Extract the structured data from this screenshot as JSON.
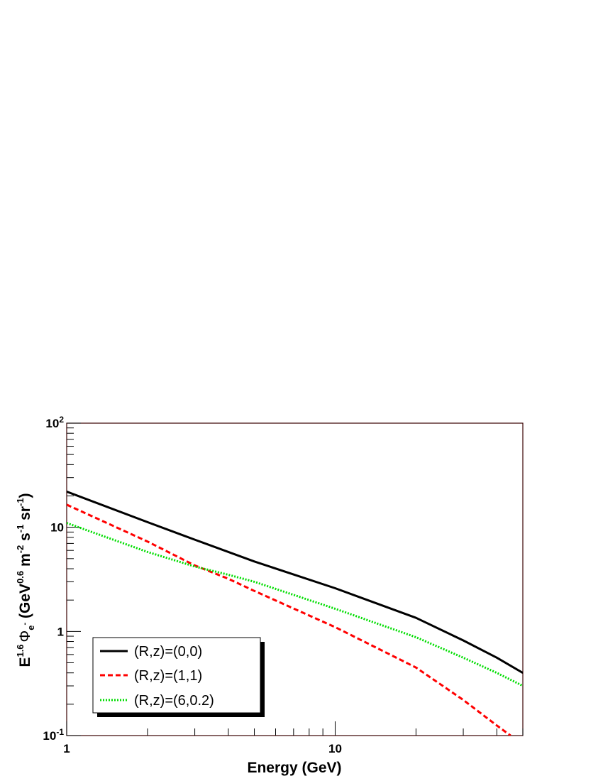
{
  "chart_data": {
    "type": "line",
    "x_scale": "log",
    "y_scale": "log",
    "xlim": [
      1,
      50
    ],
    "ylim": [
      0.1,
      100
    ],
    "xlabel": "Energy (GeV)",
    "ylabel": {
      "base": "E",
      "sup1": "1.6",
      "phi": "Φ",
      "sub": "e",
      "sub_sup": "-",
      "open": " (GeV",
      "sup2": "0.6",
      "m": " m",
      "sup3": "-2",
      "s": " s",
      "sup4": "-1",
      "sr": " sr",
      "sup5": "-1",
      "close": ")"
    },
    "x_ticks": [
      {
        "value": 1,
        "base": "1",
        "exp": ""
      },
      {
        "value": 10,
        "base": "10",
        "exp": ""
      }
    ],
    "y_ticks": [
      {
        "value": 0.1,
        "base": "10",
        "exp": "-1"
      },
      {
        "value": 1,
        "base": "1",
        "exp": ""
      },
      {
        "value": 10,
        "base": "10",
        "exp": ""
      },
      {
        "value": 100,
        "base": "10",
        "exp": "2"
      }
    ],
    "grid": false,
    "legend_position": "bottom-left",
    "series": [
      {
        "name": "(R,z)=(0,0)",
        "color": "#000000",
        "style": "solid",
        "x": [
          1,
          2,
          3,
          5,
          10,
          20,
          30,
          40,
          50
        ],
        "y": [
          22,
          11.2,
          7.6,
          4.7,
          2.6,
          1.35,
          0.82,
          0.56,
          0.4
        ]
      },
      {
        "name": "(R,z)=(1,1)",
        "color": "#ff0000",
        "style": "dashed",
        "x": [
          1,
          2,
          3,
          4,
          5,
          10,
          20,
          30,
          40,
          45
        ],
        "y": [
          16.5,
          7.3,
          4.3,
          3.2,
          2.45,
          1.1,
          0.45,
          0.22,
          0.125,
          0.1
        ]
      },
      {
        "name": "(R,z)=(6,0.2)",
        "color": "#00dd00",
        "style": "dotted",
        "x": [
          1,
          2,
          3,
          4,
          5,
          10,
          20,
          30,
          40,
          50
        ],
        "y": [
          11,
          5.8,
          4.2,
          3.5,
          3,
          1.65,
          0.88,
          0.56,
          0.4,
          0.3
        ]
      }
    ]
  }
}
